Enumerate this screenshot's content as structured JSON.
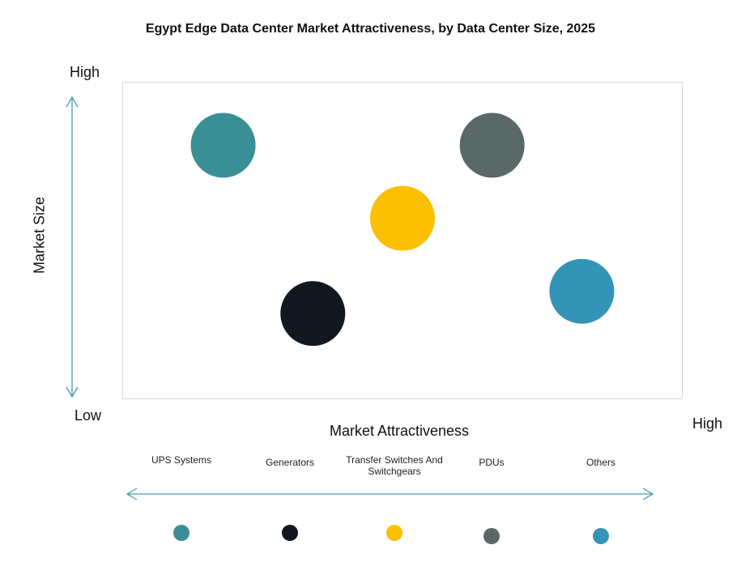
{
  "chart_data": {
    "type": "bubble",
    "title": "Egypt Edge Data Center Market Attractiveness,  by Data Center Size, 2025",
    "xlabel": "Market Attractiveness",
    "ylabel": "Market Size",
    "x_low_label": "Low",
    "x_high_label": "High",
    "y_high_label": "High",
    "xlim": [
      0,
      10
    ],
    "ylim": [
      0,
      10
    ],
    "grid": false,
    "legend_position": "bottom",
    "series": [
      {
        "name": "UPS Systems",
        "x": 1.8,
        "y": 8.0,
        "color": "#3a8f96"
      },
      {
        "name": "Generators",
        "x": 3.4,
        "y": 2.7,
        "color": "#111820"
      },
      {
        "name": "Transfer Switches And Switchgears",
        "x": 5.0,
        "y": 5.7,
        "color": "#fcc000"
      },
      {
        "name": "PDUs",
        "x": 6.6,
        "y": 8.0,
        "color": "#5a6868"
      },
      {
        "name": "Others",
        "x": 8.2,
        "y": 3.4,
        "color": "#3494b8"
      }
    ],
    "axis_color": "#4a9ab5"
  }
}
